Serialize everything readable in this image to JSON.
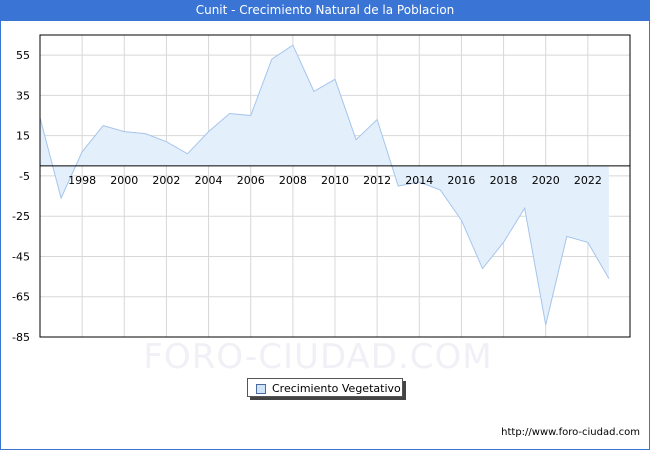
{
  "header": {
    "title": "Cunit - Crecimiento Natural de la Poblacion"
  },
  "legend": {
    "label": "Crecimiento Vegetativo",
    "swatch_color": "#cfe4f7"
  },
  "footer": {
    "url": "http://www.foro-ciudad.com"
  },
  "watermark": "FORO-CIUDAD.COM",
  "colors": {
    "title_bar": "#3a75d6",
    "area_fill": "#e3f0fc",
    "line": "#a6c4ec",
    "highlight_line": "#3a75d6",
    "grid": "#d8d8d8",
    "axis": "#000000"
  },
  "chart_data": {
    "type": "area",
    "title": "Cunit - Crecimiento Natural de la Poblacion",
    "xlabel": "",
    "ylabel": "",
    "x": [
      1996,
      1997,
      1998,
      1999,
      2000,
      2001,
      2002,
      2003,
      2004,
      2005,
      2006,
      2007,
      2008,
      2009,
      2010,
      2011,
      2012,
      2013,
      2014,
      2015,
      2016,
      2017,
      2018,
      2019,
      2020,
      2021,
      2022,
      2023
    ],
    "series": [
      {
        "name": "Crecimiento Vegetativo",
        "values": [
          24,
          -16,
          7,
          20,
          17,
          16,
          12,
          6,
          17,
          26,
          25,
          53,
          60,
          37,
          43,
          13,
          23,
          -10,
          -8,
          -12,
          -27,
          -51,
          -38,
          -21,
          -79,
          -35,
          -38,
          -56
        ]
      }
    ],
    "x_tick_labels": [
      "1998",
      "2000",
      "2002",
      "2004",
      "2006",
      "2008",
      "2010",
      "2012",
      "2014",
      "2016",
      "2018",
      "2020",
      "2022"
    ],
    "y_tick_labels": [
      "55",
      "35",
      "15",
      "-5",
      "-25",
      "-45",
      "-65",
      "-85"
    ],
    "ylim": [
      -85,
      65
    ],
    "xlim": [
      1996,
      2024
    ],
    "grid": true,
    "legend_position": "bottom-center"
  }
}
